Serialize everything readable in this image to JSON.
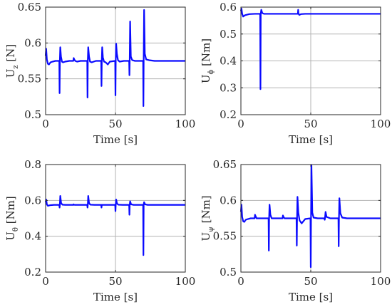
{
  "chart_data": [
    {
      "type": "line",
      "title": "",
      "xlabel": "Time [s]",
      "ylabel": {
        "main": "U",
        "sub": "z",
        "unit": " [N]"
      },
      "xlim": [
        0,
        100
      ],
      "ylim": [
        0.5,
        0.65
      ],
      "xticks": [
        0,
        50,
        100
      ],
      "xtick_labels": [
        "0",
        "50",
        "100"
      ],
      "yticks": [
        0.5,
        0.55,
        0.6,
        0.65
      ],
      "ytick_labels": [
        "0.5",
        "0.55",
        "0.6",
        "0.65"
      ],
      "grid": true,
      "color": "#0a0aff",
      "series": [
        {
          "x": [
            0,
            0.4,
            0.9,
            1.6,
            2.4,
            3.5,
            5,
            7,
            9.8,
            10.0,
            10.2,
            10.5,
            11,
            11.7,
            12.5,
            14,
            17,
            19.8,
            20.1,
            20.5,
            21.2,
            22.5,
            25,
            29.8,
            30.0,
            30.2,
            30.5,
            31.1,
            31.8,
            33,
            36,
            39.8,
            40.0,
            40.2,
            40.5,
            41,
            41.8,
            43,
            44.5,
            46,
            49.8,
            50.0,
            50.2,
            50.5,
            51,
            51.8,
            53,
            56,
            59.8,
            60.0,
            60.2,
            60.5,
            61,
            62,
            64,
            69.8,
            70.0,
            70.2,
            70.5,
            71,
            72,
            74,
            78,
            85,
            100
          ],
          "y": [
            0.582,
            0.592,
            0.577,
            0.571,
            0.57,
            0.573,
            0.574,
            0.575,
            0.575,
            0.53,
            0.575,
            0.594,
            0.581,
            0.574,
            0.573,
            0.574,
            0.575,
            0.575,
            0.579,
            0.577,
            0.575,
            0.574,
            0.575,
            0.575,
            0.524,
            0.575,
            0.594,
            0.581,
            0.574,
            0.573,
            0.575,
            0.575,
            0.54,
            0.575,
            0.594,
            0.58,
            0.574,
            0.573,
            0.57,
            0.574,
            0.575,
            0.527,
            0.575,
            0.599,
            0.585,
            0.576,
            0.574,
            0.575,
            0.575,
            0.555,
            0.575,
            0.63,
            0.581,
            0.576,
            0.575,
            0.575,
            0.512,
            0.575,
            0.646,
            0.585,
            0.577,
            0.576,
            0.575,
            0.575,
            0.575
          ]
        }
      ]
    },
    {
      "type": "line",
      "title": "",
      "xlabel": "Time [s]",
      "ylabel": {
        "main": "U",
        "sub": "ϕ",
        "unit": " [Nm]"
      },
      "xlim": [
        0,
        100
      ],
      "ylim": [
        0.2,
        0.6
      ],
      "xticks": [
        0,
        50,
        100
      ],
      "xtick_labels": [
        "0",
        "50",
        "100"
      ],
      "yticks": [
        0.2,
        0.3,
        0.4,
        0.5,
        0.6
      ],
      "ytick_labels": [
        "0.2",
        "0.3",
        "0.4",
        "0.5",
        "0.6"
      ],
      "grid": true,
      "color": "#0a0aff",
      "series": [
        {
          "x": [
            0,
            0.4,
            0.9,
            1.6,
            3,
            6,
            10,
            13.8,
            14.0,
            14.2,
            14.6,
            15.3,
            16.5,
            20,
            30,
            40.8,
            41.0,
            41.2,
            41.8,
            43,
            46,
            60,
            80,
            100
          ],
          "y": [
            0.585,
            0.595,
            0.575,
            0.565,
            0.57,
            0.574,
            0.575,
            0.575,
            0.295,
            0.575,
            0.59,
            0.578,
            0.575,
            0.575,
            0.575,
            0.575,
            0.59,
            0.576,
            0.571,
            0.574,
            0.575,
            0.575,
            0.575,
            0.575
          ]
        }
      ]
    },
    {
      "type": "line",
      "title": "",
      "xlabel": "Time [s]",
      "ylabel": {
        "main": "U",
        "sub": "θ",
        "unit": " [Nm]"
      },
      "xlim": [
        0,
        100
      ],
      "ylim": [
        0.2,
        0.8
      ],
      "xticks": [
        0,
        50,
        100
      ],
      "xtick_labels": [
        "0",
        "50",
        "100"
      ],
      "yticks": [
        0.2,
        0.4,
        0.6,
        0.8
      ],
      "ytick_labels": [
        "0.2",
        "0.4",
        "0.6",
        "0.8"
      ],
      "grid": true,
      "color": "#0a0aff",
      "series": [
        {
          "x": [
            0,
            0.4,
            0.9,
            1.6,
            3,
            6,
            9.8,
            10.0,
            10.2,
            10.5,
            11.1,
            12,
            14,
            19.8,
            20.0,
            20.2,
            21,
            25,
            29.8,
            30.0,
            30.2,
            30.5,
            31.1,
            32,
            35,
            39.8,
            40.0,
            40.2,
            41,
            45,
            49.8,
            50.0,
            50.2,
            50.5,
            51.1,
            52,
            55,
            59.8,
            60.0,
            60.2,
            60.5,
            61.2,
            63,
            67,
            69.8,
            70.0,
            70.2,
            70.5,
            71.2,
            73,
            80,
            100
          ],
          "y": [
            0.59,
            0.605,
            0.578,
            0.57,
            0.573,
            0.575,
            0.575,
            0.56,
            0.575,
            0.625,
            0.585,
            0.576,
            0.575,
            0.575,
            0.578,
            0.576,
            0.575,
            0.575,
            0.575,
            0.56,
            0.575,
            0.625,
            0.585,
            0.576,
            0.575,
            0.575,
            0.56,
            0.575,
            0.575,
            0.575,
            0.575,
            0.54,
            0.575,
            0.605,
            0.583,
            0.576,
            0.575,
            0.575,
            0.52,
            0.575,
            0.595,
            0.578,
            0.575,
            0.575,
            0.575,
            0.295,
            0.575,
            0.59,
            0.578,
            0.575,
            0.575,
            0.575
          ]
        }
      ]
    },
    {
      "type": "line",
      "title": "",
      "xlabel": "Time [s]",
      "ylabel": {
        "main": "U",
        "sub": "ψ",
        "unit": " [Nm]"
      },
      "xlim": [
        0,
        100
      ],
      "ylim": [
        0.5,
        0.65
      ],
      "xticks": [
        0,
        50,
        100
      ],
      "xtick_labels": [
        "0",
        "50",
        "100"
      ],
      "yticks": [
        0.5,
        0.55,
        0.6,
        0.65
      ],
      "ytick_labels": [
        "0.5",
        "0.55",
        "0.6",
        "0.65"
      ],
      "grid": true,
      "color": "#0a0aff",
      "series": [
        {
          "x": [
            0,
            0.4,
            0.9,
            1.6,
            2.4,
            3.5,
            5,
            7,
            9.8,
            10.1,
            10.5,
            11.2,
            13,
            17,
            19.8,
            20.0,
            20.2,
            20.5,
            21.1,
            22,
            25,
            29.8,
            30.1,
            30.5,
            31.2,
            34,
            39.8,
            40.0,
            40.2,
            40.5,
            41.1,
            42,
            43.5,
            46,
            49.8,
            50.0,
            50.2,
            50.5,
            51.1,
            52,
            55,
            59.8,
            60.0,
            60.2,
            60.6,
            61.3,
            64,
            69.8,
            70.0,
            70.2,
            70.5,
            71.2,
            72.5,
            76,
            85,
            100
          ],
          "y": [
            0.584,
            0.594,
            0.577,
            0.571,
            0.57,
            0.573,
            0.574,
            0.575,
            0.575,
            0.58,
            0.578,
            0.575,
            0.575,
            0.575,
            0.575,
            0.53,
            0.575,
            0.594,
            0.58,
            0.575,
            0.575,
            0.575,
            0.579,
            0.577,
            0.575,
            0.575,
            0.575,
            0.537,
            0.575,
            0.605,
            0.583,
            0.572,
            0.568,
            0.574,
            0.575,
            0.507,
            0.575,
            0.649,
            0.583,
            0.576,
            0.575,
            0.575,
            0.573,
            0.575,
            0.584,
            0.577,
            0.575,
            0.575,
            0.536,
            0.575,
            0.603,
            0.582,
            0.576,
            0.575,
            0.575,
            0.575
          ]
        }
      ]
    }
  ]
}
